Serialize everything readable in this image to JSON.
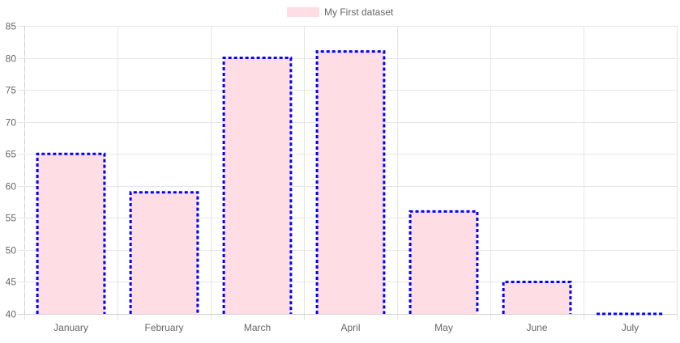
{
  "chart_data": {
    "type": "bar",
    "categories": [
      "January",
      "February",
      "March",
      "April",
      "May",
      "June",
      "July"
    ],
    "series": [
      {
        "name": "My First dataset",
        "values": [
          65,
          59,
          80,
          81,
          56,
          45,
          40
        ],
        "fill_color": "#ffdde4",
        "border_color": "#0000ff",
        "border_style": "dashed"
      }
    ],
    "y_ticks": [
      40,
      45,
      50,
      55,
      60,
      65,
      70,
      75,
      80,
      85
    ],
    "ylim": [
      40,
      85
    ],
    "grid": true,
    "legend_position": "top",
    "grid_color": "#e5e5e5"
  }
}
